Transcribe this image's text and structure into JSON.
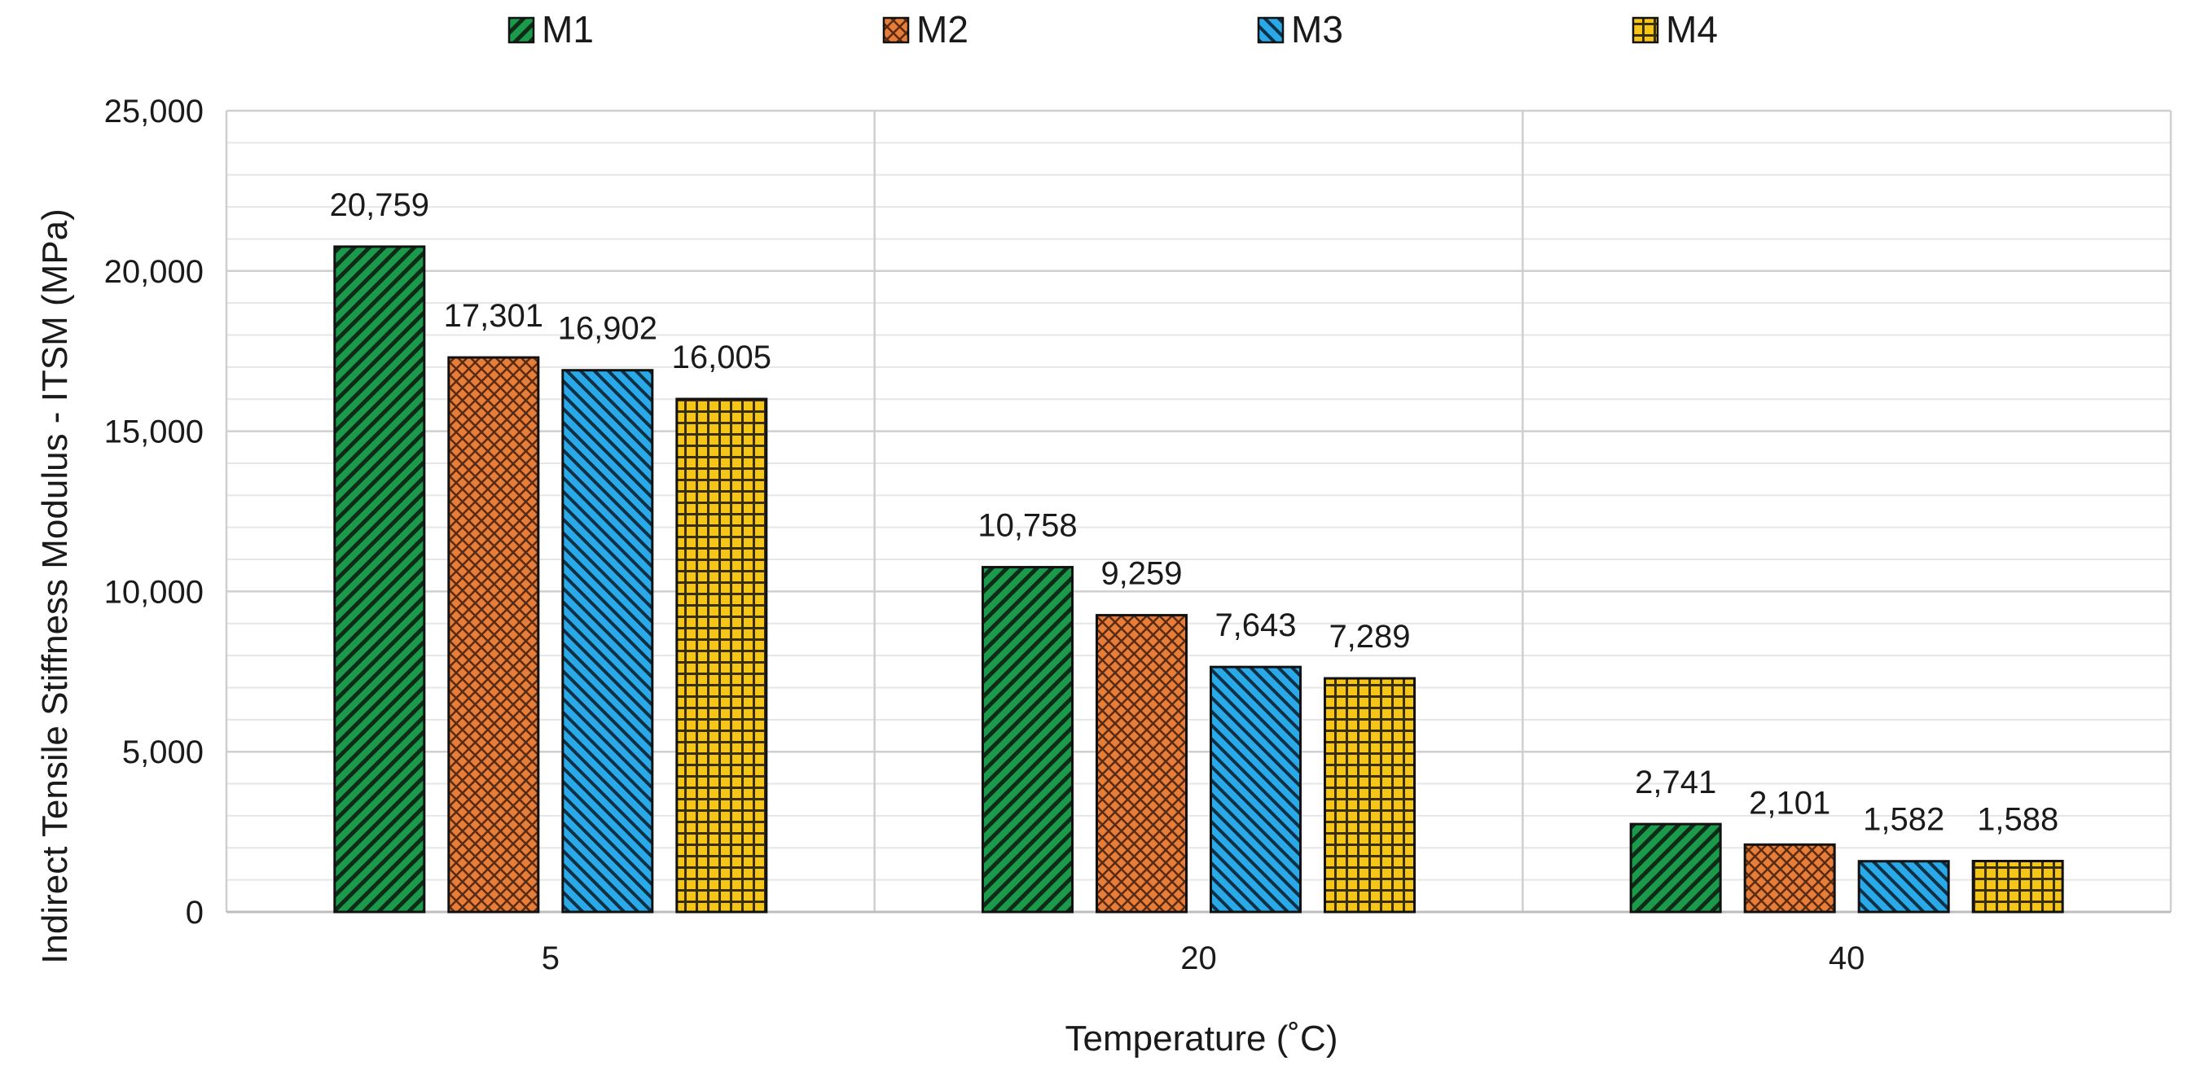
{
  "chart_data": {
    "type": "bar",
    "title": "",
    "xlabel": "Temperature (˚C)",
    "ylabel": "Indirect Tensile Stiffness Modulus  - ITSM (MPa)",
    "categories": [
      "5",
      "20",
      "40"
    ],
    "ylim": [
      0,
      25000
    ],
    "yticks": [
      0,
      5000,
      10000,
      15000,
      20000,
      25000
    ],
    "ytick_labels": [
      "0",
      "5,000",
      "10,000",
      "15,000",
      "20,000",
      "25,000"
    ],
    "grid": true,
    "legend_position": "top",
    "series": [
      {
        "name": "M1",
        "values": [
          20759,
          10758,
          2741
        ],
        "labels": [
          "20,759",
          "10,758",
          "2,741"
        ],
        "color": "#1a9a4a",
        "pattern": "diagonal-back"
      },
      {
        "name": "M2",
        "values": [
          17301,
          9259,
          2101
        ],
        "labels": [
          "17,301",
          "9,259",
          "2,101"
        ],
        "color": "#e67e3a",
        "pattern": "crosshatch"
      },
      {
        "name": "M3",
        "values": [
          16902,
          7643,
          1582
        ],
        "labels": [
          "16,902",
          "7,643",
          "1,582"
        ],
        "color": "#2aa9e8",
        "pattern": "diagonal-forward"
      },
      {
        "name": "M4",
        "values": [
          16005,
          7289,
          1588
        ],
        "labels": [
          "16,005",
          "7,289",
          "1,588"
        ],
        "color": "#f5c518",
        "pattern": "grid"
      }
    ]
  }
}
